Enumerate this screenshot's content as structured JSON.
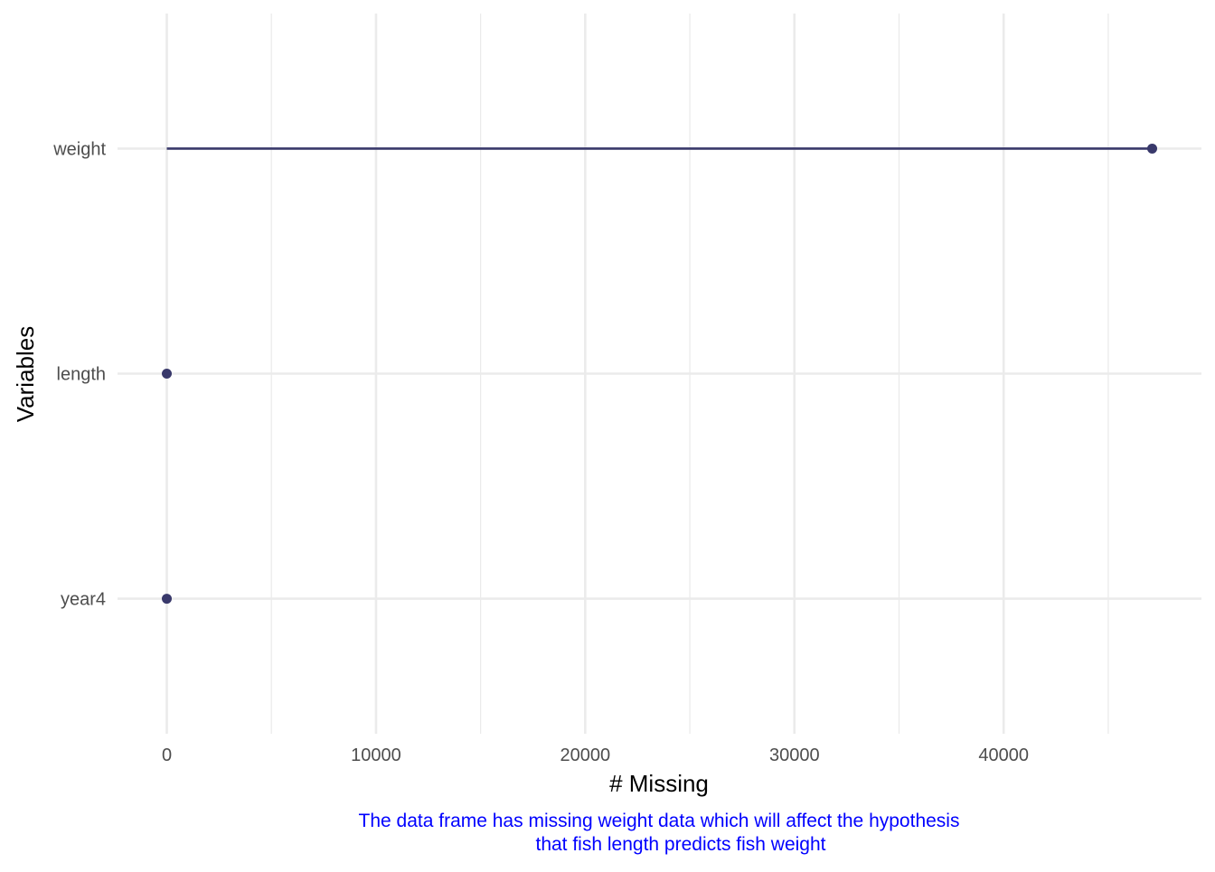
{
  "colors": {
    "series": "#39396b",
    "caption": "#0000ff",
    "grid": "#ebebeb",
    "tick_text": "#4d4d4d"
  },
  "chart_data": {
    "type": "lollipop",
    "title": "",
    "xlabel": "# Missing",
    "ylabel": "Variables",
    "orientation": "horizontal",
    "categories": [
      "weight",
      "length",
      "year4"
    ],
    "values": [
      47100,
      0,
      0
    ],
    "xlim": [
      -2355,
      49455
    ],
    "xticks": [
      0,
      10000,
      20000,
      30000,
      40000
    ],
    "xtick_labels": [
      "0",
      "10000",
      "20000",
      "30000",
      "40000"
    ],
    "x_minor_breaks": [
      5000,
      15000,
      25000,
      35000,
      45000
    ],
    "grid": true,
    "legend": "none",
    "caption_lines": [
      "The data frame has missing weight data which will affect the hypothesis",
      "that fish length predicts fish weight"
    ]
  }
}
